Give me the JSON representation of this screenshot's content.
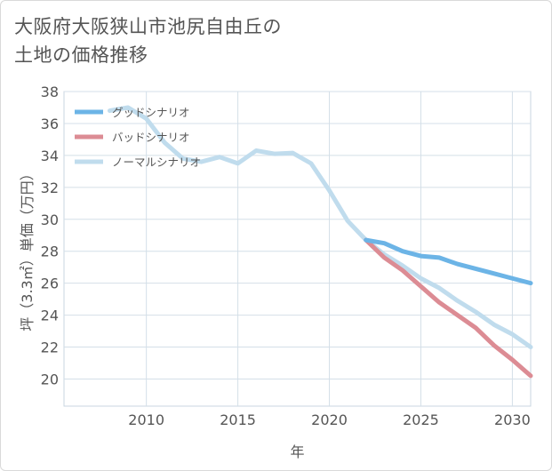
{
  "title_line1": "大阪府大阪狭山市池尻自由丘の",
  "title_line2": "土地の価格推移",
  "chart_data": {
    "type": "line",
    "xlabel": "年",
    "ylabel": "坪（3.3㎡）単価（万円）",
    "xlim": [
      2005.5,
      2031
    ],
    "ylim": [
      18.3,
      38
    ],
    "yticks": [
      20,
      22,
      24,
      26,
      28,
      30,
      32,
      34,
      36,
      38
    ],
    "xticks": [
      2010,
      2015,
      2020,
      2025,
      2030
    ],
    "grid": true,
    "legend_position": "top-left",
    "series": [
      {
        "name": "グッドシナリオ",
        "color": "#6cb4e6",
        "x": [
          2022,
          2023,
          2024,
          2025,
          2026,
          2027,
          2028,
          2029,
          2030,
          2031
        ],
        "y": [
          28.7,
          28.5,
          28.0,
          27.7,
          27.6,
          27.2,
          26.9,
          26.6,
          26.3,
          26.0
        ]
      },
      {
        "name": "バッドシナリオ",
        "color": "#dc8c94",
        "x": [
          2022,
          2023,
          2024,
          2025,
          2026,
          2027,
          2028,
          2029,
          2030,
          2031
        ],
        "y": [
          28.7,
          27.6,
          26.8,
          25.8,
          24.8,
          24.0,
          23.2,
          22.1,
          21.2,
          20.2
        ]
      },
      {
        "name": "ノーマルシナリオ",
        "color": "#c0dced",
        "x": [
          2008,
          2009,
          2010,
          2011,
          2012,
          2013,
          2014,
          2015,
          2016,
          2017,
          2018,
          2019,
          2020,
          2021,
          2022,
          2023,
          2024,
          2025,
          2026,
          2027,
          2028,
          2029,
          2030,
          2031
        ],
        "y": [
          36.8,
          37.0,
          36.3,
          34.8,
          33.8,
          33.6,
          33.9,
          33.5,
          34.3,
          34.1,
          34.15,
          33.5,
          31.8,
          29.9,
          28.7,
          27.8,
          27.1,
          26.3,
          25.7,
          24.9,
          24.2,
          23.4,
          22.8,
          22.0
        ]
      }
    ]
  }
}
